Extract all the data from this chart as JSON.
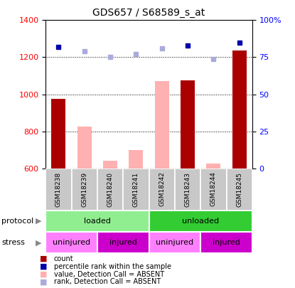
{
  "title": "GDS657 / S68589_s_at",
  "samples": [
    "GSM18238",
    "GSM18239",
    "GSM18240",
    "GSM18241",
    "GSM18242",
    "GSM18243",
    "GSM18244",
    "GSM18245"
  ],
  "count_values": [
    975,
    null,
    null,
    null,
    null,
    1075,
    null,
    1235
  ],
  "count_absent_values": [
    null,
    825,
    640,
    700,
    1070,
    null,
    625,
    null
  ],
  "rank_values": [
    82,
    null,
    null,
    null,
    null,
    83,
    null,
    85
  ],
  "rank_absent_values": [
    null,
    79,
    75,
    77,
    81,
    null,
    74,
    null
  ],
  "ylim_left": [
    600,
    1400
  ],
  "ylim_right": [
    0,
    100
  ],
  "yticks_left": [
    600,
    800,
    1000,
    1200,
    1400
  ],
  "yticks_right": [
    0,
    25,
    50,
    75,
    100
  ],
  "ytick_right_labels": [
    "0",
    "25",
    "50",
    "75",
    "100%"
  ],
  "protocol_groups": [
    {
      "label": "loaded",
      "start": 0,
      "end": 4,
      "color": "#90EE90"
    },
    {
      "label": "unloaded",
      "start": 4,
      "end": 8,
      "color": "#33CC33"
    }
  ],
  "stress_groups": [
    {
      "label": "uninjured",
      "start": 0,
      "end": 2,
      "color": "#FF80FF"
    },
    {
      "label": "injured",
      "start": 2,
      "end": 4,
      "color": "#CC00CC"
    },
    {
      "label": "uninjured",
      "start": 4,
      "end": 6,
      "color": "#FF80FF"
    },
    {
      "label": "injured",
      "start": 6,
      "end": 8,
      "color": "#CC00CC"
    }
  ],
  "bar_color_present": "#AA0000",
  "bar_color_absent": "#FFB0B0",
  "dot_color_present": "#0000AA",
  "dot_color_absent": "#AAAADD",
  "bar_width": 0.55,
  "xlabel_area_bg": "#C8C8C8",
  "legend_items": [
    {
      "color": "#AA0000",
      "label": "count"
    },
    {
      "color": "#0000AA",
      "label": "percentile rank within the sample"
    },
    {
      "color": "#FFB0B0",
      "label": "value, Detection Call = ABSENT"
    },
    {
      "color": "#AAAADD",
      "label": "rank, Detection Call = ABSENT"
    }
  ]
}
